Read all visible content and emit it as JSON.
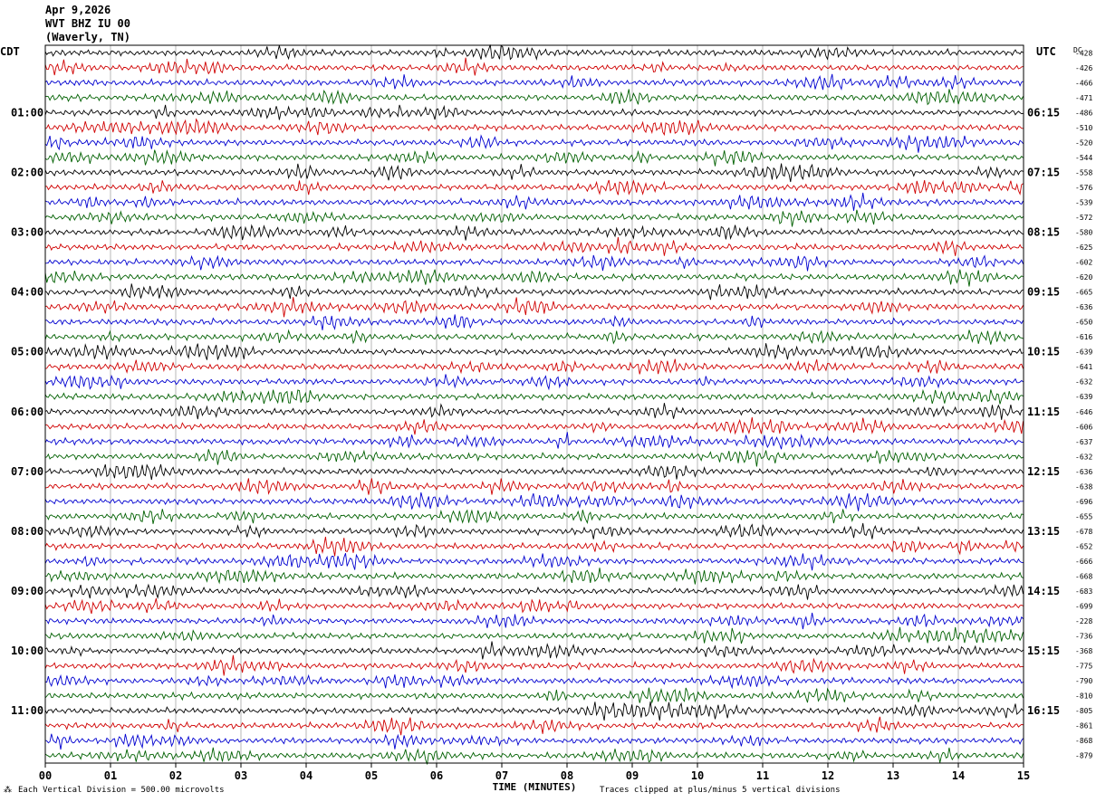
{
  "header": {
    "date": "Apr 9,2026",
    "station": "WVT BHZ IU 00",
    "location": "(Waverly, TN)"
  },
  "left_axis_label": "CDT",
  "right_axis_label": "UTC",
  "dc_label": "DC",
  "footer": {
    "scale": "Each Vertical Division =  500.00 microvolts",
    "clip": "Traces clipped at plus/minus 5 vertical divisions"
  },
  "chart_data": {
    "type": "line",
    "title": "",
    "xlabel": "TIME (MINUTES)",
    "x_ticks": [
      "00",
      "01",
      "02",
      "03",
      "04",
      "05",
      "06",
      "07",
      "08",
      "09",
      "10",
      "11",
      "12",
      "13",
      "14",
      "15"
    ],
    "xlim": [
      0,
      15
    ],
    "rows_per_hour": 4,
    "row_count": 48,
    "trace_colors": [
      "#000000",
      "#d00000",
      "#0000d0",
      "#006000"
    ],
    "grid": true,
    "left_time_labels": [
      {
        "row": 4,
        "text": "01:00"
      },
      {
        "row": 8,
        "text": "02:00"
      },
      {
        "row": 12,
        "text": "03:00"
      },
      {
        "row": 16,
        "text": "04:00"
      },
      {
        "row": 20,
        "text": "05:00"
      },
      {
        "row": 24,
        "text": "06:00"
      },
      {
        "row": 28,
        "text": "07:00"
      },
      {
        "row": 32,
        "text": "08:00"
      },
      {
        "row": 36,
        "text": "09:00"
      },
      {
        "row": 40,
        "text": "10:00"
      },
      {
        "row": 44,
        "text": "11:00"
      }
    ],
    "right_time_labels": [
      {
        "row": 4,
        "text": "06:15"
      },
      {
        "row": 8,
        "text": "07:15"
      },
      {
        "row": 12,
        "text": "08:15"
      },
      {
        "row": 16,
        "text": "09:15"
      },
      {
        "row": 20,
        "text": "10:15"
      },
      {
        "row": 24,
        "text": "11:15"
      },
      {
        "row": 28,
        "text": "12:15"
      },
      {
        "row": 32,
        "text": "13:15"
      },
      {
        "row": 36,
        "text": "14:15"
      },
      {
        "row": 40,
        "text": "15:15"
      },
      {
        "row": 44,
        "text": "16:15"
      }
    ],
    "dc_values": [
      "-428",
      "-426",
      "-466",
      "-471",
      "-486",
      "-510",
      "-520",
      "-544",
      "-558",
      "-576",
      "-539",
      "-572",
      "-580",
      "-625",
      "-602",
      "-620",
      "-665",
      "-636",
      "-650",
      "-616",
      "-639",
      "-641",
      "-632",
      "-639",
      "-646",
      "-606",
      "-637",
      "-632",
      "-636",
      "-638",
      "-696",
      "-655",
      "-678",
      "-652",
      "-666",
      "-668",
      "-683",
      "-699",
      "-228",
      "-736",
      "-368",
      "-775",
      "-790",
      "-810",
      "-805",
      "-861",
      "-868",
      "-879"
    ]
  }
}
